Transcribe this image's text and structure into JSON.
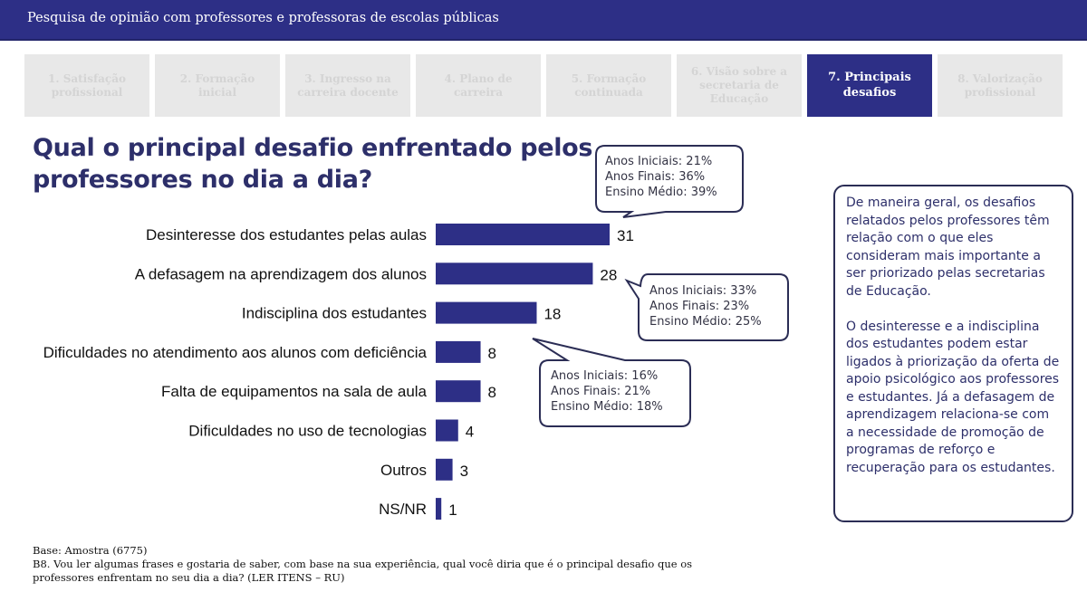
{
  "header": {
    "title": "Pesquisa de opinião com professores e professoras de escolas públicas",
    "background": "#2d2f86"
  },
  "tabs": [
    {
      "label": "1. Satisfação profissional",
      "active": false
    },
    {
      "label": "2. Formação inicial",
      "active": false
    },
    {
      "label": "3. Ingresso na carreira docente",
      "active": false
    },
    {
      "label": "4. Plano de carreira",
      "active": false
    },
    {
      "label": "5. Formação continuada",
      "active": false
    },
    {
      "label": "6. Visão sobre a secretaria de Educação",
      "active": false
    },
    {
      "label": "7. Principais desafios",
      "active": true
    },
    {
      "label": "8. Valorização profissional",
      "active": false
    }
  ],
  "question": "Qual o principal desafio enfrentado pelos professores no dia a dia?",
  "callouts": [
    {
      "target": "Desinteresse dos estudantes pelas aulas",
      "lines": [
        "Anos Iniciais: 21%",
        "Anos Finais: 36%",
        "Ensino Médio: 39%"
      ]
    },
    {
      "target": "A defasagem na aprendizagem dos alunos",
      "lines": [
        "Anos Iniciais: 33%",
        "Anos Finais: 23%",
        "Ensino Médio: 25%"
      ]
    },
    {
      "target": "Indisciplina dos estudantes",
      "lines": [
        "Anos Iniciais: 16%",
        "Anos Finais: 21%",
        "Ensino Médio: 18%"
      ]
    }
  ],
  "note": {
    "paragraphs": [
      "De maneira geral, os desafios relatados pelos professores têm relação com o que eles consideram mais importante a ser priorizado pelas secretarias de Educação.",
      "O desinteresse e a indisciplina dos estudantes podem estar ligados à priorização da oferta de apoio psicológico aos professores e estudantes. Já a defasagem de aprendizagem relaciona-se com a necessidade de promoção de programas de reforço e recuperação para os estudantes."
    ]
  },
  "footer": {
    "base": "Base: Amostra (6775)",
    "question_text": "B8. Vou ler algumas frases e gostaria de saber, com base na sua experiência, qual você diria que é o principal desafio que os professores enfrentam no seu dia a dia? (LER ITENS – RU)"
  },
  "chart_data": {
    "type": "bar",
    "orientation": "horizontal",
    "title": "Qual o principal desafio enfrentado pelos professores no dia a dia?",
    "xlabel": "",
    "ylabel": "",
    "unit": "%",
    "categories": [
      "Desinteresse dos estudantes pelas aulas",
      "A defasagem na aprendizagem dos alunos",
      "Indisciplina dos estudantes",
      "Dificuldades no atendimento aos alunos com deficiência",
      "Falta de equipamentos na sala de aula",
      "Dificuldades no uso de tecnologias",
      "Outros",
      "NS/NR"
    ],
    "values": [
      31,
      28,
      18,
      8,
      8,
      4,
      3,
      1
    ],
    "xlim": [
      0,
      31
    ],
    "grid": false,
    "legend": "none",
    "bar_color": "#2d2f86"
  }
}
